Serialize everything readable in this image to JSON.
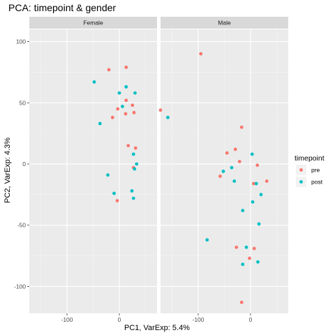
{
  "chart_data": {
    "type": "scatter",
    "title": "PCA: timepoint & gender",
    "xlabel": "PC1, VarExp: 5.4%",
    "ylabel": "PC2, VarExp: 4.3%",
    "xlim": [
      -172,
      72
    ],
    "ylim": [
      -122,
      110
    ],
    "x_ticks": [
      -100,
      0
    ],
    "y_ticks": [
      100,
      50,
      0,
      -50,
      -100
    ],
    "x_tick_labels": [
      "-100",
      "0"
    ],
    "y_tick_labels": [
      "100",
      "50",
      "0",
      "-50",
      "-100"
    ],
    "grid": true,
    "legend": {
      "title": "timepoint",
      "position": "right",
      "entries": [
        {
          "label": "pre",
          "color": "#F8766D"
        },
        {
          "label": "post",
          "color": "#00BFC4"
        }
      ]
    },
    "panels": [
      {
        "label": "Female",
        "series": [
          {
            "name": "pre",
            "points": [
              [
                -20,
                77
              ],
              [
                -13,
                38
              ],
              [
                -3,
                45
              ],
              [
                13,
                79
              ],
              [
                13,
                52
              ],
              [
                12,
                41
              ],
              [
                25,
                48
              ],
              [
                28,
                42
              ],
              [
                17,
                15
              ],
              [
                31,
                13
              ],
              [
                27,
                -3
              ],
              [
                -4,
                -30
              ]
            ]
          },
          {
            "name": "post",
            "points": [
              [
                -48,
                67
              ],
              [
                -37,
                33
              ],
              [
                0,
                58
              ],
              [
                13,
                63
              ],
              [
                6,
                47
              ],
              [
                30,
                58
              ],
              [
                27,
                8
              ],
              [
                33,
                0
              ],
              [
                29,
                -4
              ],
              [
                24,
                -22
              ],
              [
                27,
                -28
              ],
              [
                -22,
                -9
              ],
              [
                -10,
                -24
              ]
            ]
          }
        ]
      },
      {
        "label": "Male",
        "series": [
          {
            "name": "pre",
            "points": [
              [
                -95,
                90
              ],
              [
                -172,
                44
              ],
              [
                -17,
                30
              ],
              [
                -45,
                9
              ],
              [
                -29,
                12
              ],
              [
                -21,
                2
              ],
              [
                -58,
                -10
              ],
              [
                6,
                -16
              ],
              [
                13,
                -1
              ],
              [
                31,
                -14
              ],
              [
                -27,
                -68
              ],
              [
                7,
                -69
              ],
              [
                -2,
                -77
              ],
              [
                -17,
                -113
              ]
            ]
          },
          {
            "name": "post",
            "points": [
              [
                -158,
                38
              ],
              [
                -52,
                -6
              ],
              [
                -36,
                -3
              ],
              [
                -31,
                -14
              ],
              [
                3,
                8
              ],
              [
                11,
                -16
              ],
              [
                20,
                -25
              ],
              [
                4,
                -31
              ],
              [
                -15,
                -38
              ],
              [
                16,
                -49
              ],
              [
                -83,
                -62
              ],
              [
                -8,
                -68
              ],
              [
                -15,
                -82
              ],
              [
                14,
                -80
              ]
            ]
          }
        ]
      }
    ]
  }
}
